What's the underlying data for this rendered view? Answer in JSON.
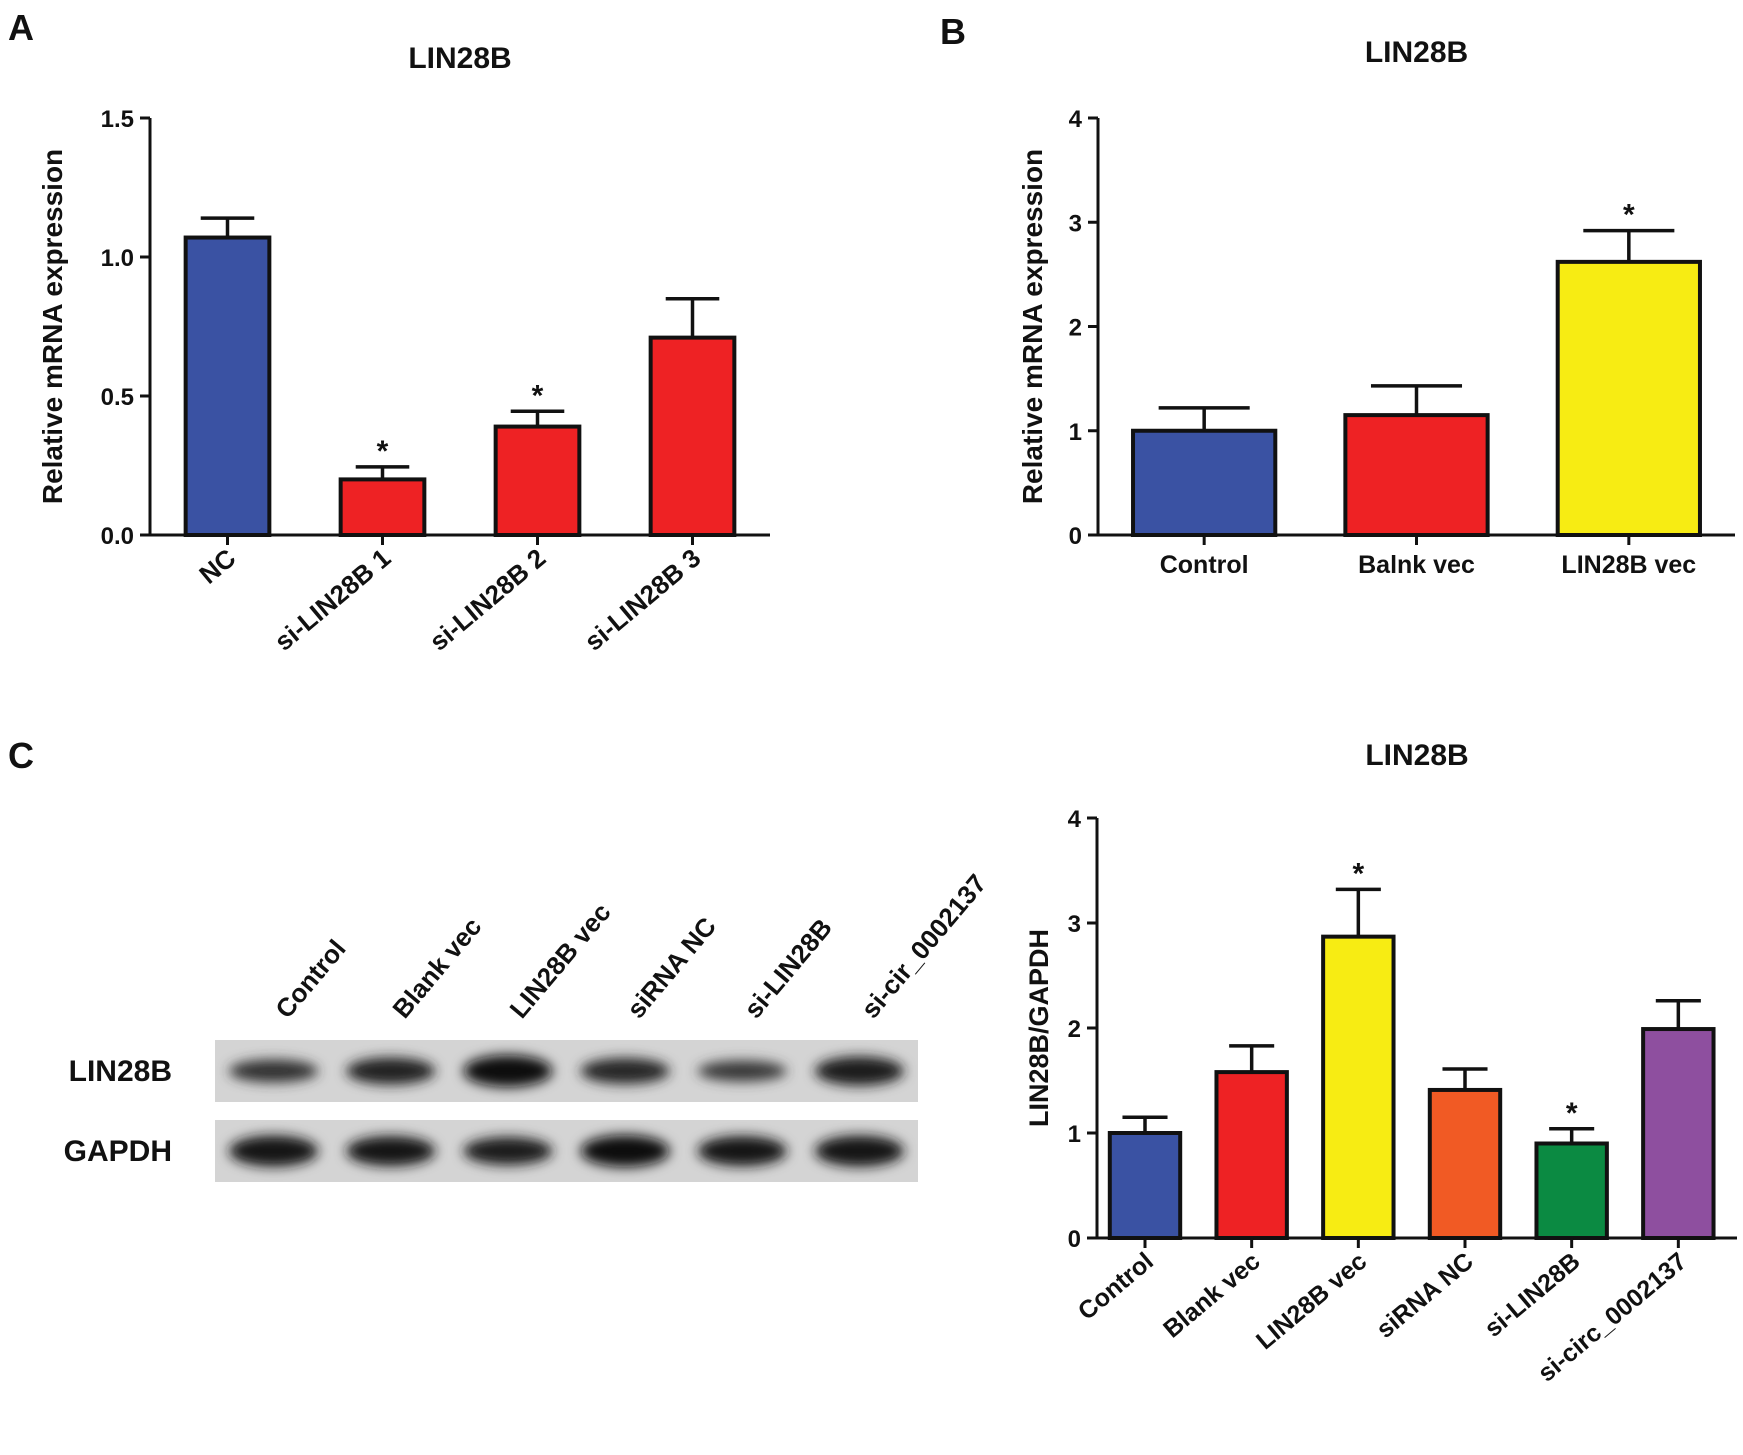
{
  "panel_labels": [
    "A",
    "B",
    "C"
  ],
  "chart_data": [
    {
      "id": "A",
      "type": "bar",
      "title": "LIN28B",
      "xlabel": "",
      "ylabel": "Relative mRNA expression",
      "ylim": [
        0,
        1.5
      ],
      "yticks": [
        "0.0",
        "0.5",
        "1.0",
        "1.5"
      ],
      "categories": [
        "NC",
        "si-LIN28B 1",
        "si-LIN28B 2",
        "si-LIN28B 3"
      ],
      "values": [
        1.07,
        0.2,
        0.39,
        0.71
      ],
      "errors": [
        0.07,
        0.045,
        0.055,
        0.14
      ],
      "significance": [
        "",
        "*",
        "*",
        ""
      ],
      "colors": [
        "#3a52a3",
        "#ee2224",
        "#ee2224",
        "#ee2224"
      ]
    },
    {
      "id": "B",
      "type": "bar",
      "title": "LIN28B",
      "xlabel": "",
      "ylabel": "Relative mRNA expression",
      "ylim": [
        0,
        4
      ],
      "yticks": [
        "0",
        "1",
        "2",
        "3",
        "4"
      ],
      "categories": [
        "Control",
        "Balnk  vec",
        "LIN28B vec"
      ],
      "values": [
        1.0,
        1.15,
        2.62
      ],
      "errors": [
        0.22,
        0.28,
        0.3
      ],
      "significance": [
        "",
        "",
        "*"
      ],
      "colors": [
        "#3a52a3",
        "#ee2224",
        "#f7ec13"
      ]
    },
    {
      "id": "C",
      "type": "bar",
      "title": "LIN28B",
      "xlabel": "",
      "ylabel": "LIN28B/GAPDH",
      "ylim": [
        0,
        4
      ],
      "yticks": [
        "0",
        "1",
        "2",
        "3",
        "4"
      ],
      "categories": [
        "Control",
        "Blank vec",
        "LIN28B vec",
        "siRNA NC",
        "si-LIN28B",
        "si-circ_0002137"
      ],
      "values": [
        1.0,
        1.58,
        2.87,
        1.41,
        0.9,
        1.99
      ],
      "errors": [
        0.15,
        0.25,
        0.45,
        0.2,
        0.14,
        0.27
      ],
      "significance": [
        "",
        "",
        "*",
        "",
        "*",
        ""
      ],
      "colors": [
        "#3a52a3",
        "#ee2224",
        "#f7ec13",
        "#f15a24",
        "#0b8a42",
        "#8e4f9f"
      ]
    }
  ],
  "blot": {
    "lane_labels": [
      "Control",
      "Blank vec",
      "LIN28B vec",
      "siRNA NC",
      "si-LIN28B",
      "si-cir_0002137"
    ],
    "rows": [
      {
        "label": "LIN28B",
        "intensities": [
          0.55,
          0.75,
          1.0,
          0.7,
          0.45,
          0.85
        ]
      },
      {
        "label": "GAPDH",
        "intensities": [
          0.95,
          0.9,
          0.8,
          1.0,
          0.9,
          0.95
        ]
      }
    ]
  }
}
